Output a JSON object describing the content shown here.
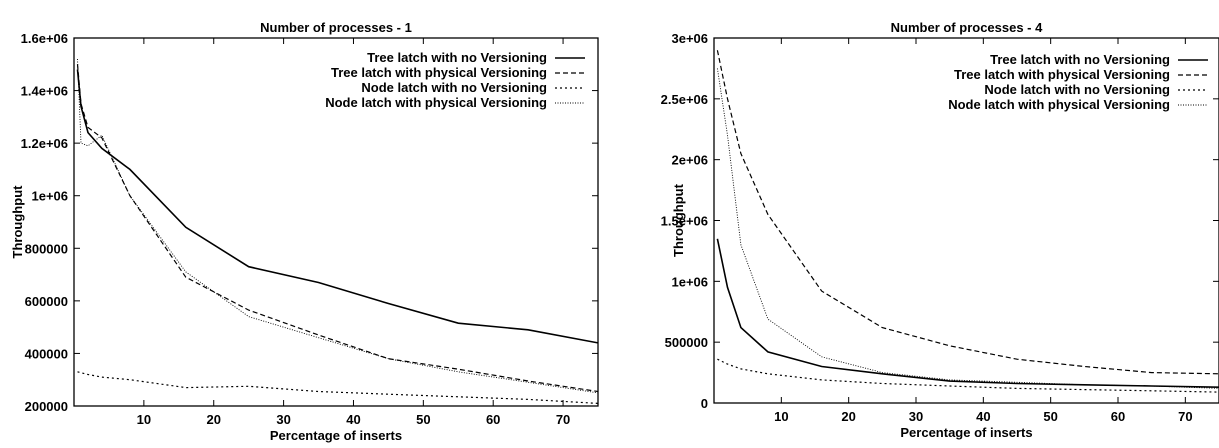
{
  "chart_data": [
    {
      "type": "line",
      "title": "Number of processes - 1",
      "xlabel": "Percentage of inserts",
      "ylabel": "Throughput",
      "xlim": [
        0,
        75
      ],
      "ylim": [
        200000,
        1600000
      ],
      "xticks": [
        10,
        20,
        30,
        40,
        50,
        60,
        70
      ],
      "yticks": [
        200000,
        400000,
        600000,
        800000,
        1000000,
        1200000,
        1400000,
        1600000
      ],
      "ytick_labels": [
        "200000",
        "400000",
        "600000",
        "800000",
        "1e+06",
        "1.2e+06",
        "1.4e+06",
        "1.6e+06"
      ],
      "legend_position": "top-right",
      "grid": false,
      "series": [
        {
          "name": "Tree latch with no Versioning",
          "dash": "solid",
          "x": [
            0.5,
            1,
            2,
            4,
            8,
            16,
            25,
            35,
            45,
            55,
            65,
            75
          ],
          "y": [
            1480000,
            1340000,
            1240000,
            1180000,
            1100000,
            880000,
            730000,
            670000,
            590000,
            515000,
            490000,
            440000
          ]
        },
        {
          "name": "Tree latch with physical Versioning",
          "dash": "dashed",
          "x": [
            0.5,
            1,
            2,
            4,
            8,
            16,
            25,
            35,
            45,
            55,
            65,
            75
          ],
          "y": [
            1500000,
            1350000,
            1260000,
            1220000,
            1000000,
            690000,
            565000,
            470000,
            380000,
            340000,
            295000,
            255000
          ]
        },
        {
          "name": "Node latch with no Versioning",
          "dash": "dotted",
          "x": [
            0.5,
            2,
            4,
            8,
            16,
            25,
            35,
            45,
            55,
            65,
            75
          ],
          "y": [
            330000,
            320000,
            310000,
            300000,
            270000,
            275000,
            255000,
            245000,
            235000,
            225000,
            210000
          ]
        },
        {
          "name": "Node latch with physical Versioning",
          "dash": "fine",
          "x": [
            0.5,
            1,
            2,
            4,
            8,
            16,
            25,
            35,
            45,
            55,
            65,
            75
          ],
          "y": [
            1520000,
            1200000,
            1190000,
            1230000,
            1000000,
            710000,
            540000,
            460000,
            380000,
            330000,
            290000,
            250000
          ]
        }
      ]
    },
    {
      "type": "line",
      "title": "Number of processes - 4",
      "xlabel": "Percentage of inserts",
      "ylabel": "Throughput",
      "xlim": [
        0,
        75
      ],
      "ylim": [
        0,
        3000000
      ],
      "xticks": [
        10,
        20,
        30,
        40,
        50,
        60,
        70
      ],
      "yticks": [
        0,
        500000,
        1000000,
        1500000,
        2000000,
        2500000,
        3000000
      ],
      "ytick_labels": [
        "0",
        "500000",
        "1e+06",
        "1.5e+06",
        "2e+06",
        "2.5e+06",
        "3e+06"
      ],
      "legend_position": "top-right",
      "grid": false,
      "series": [
        {
          "name": "Tree latch with no Versioning",
          "dash": "solid",
          "x": [
            0.5,
            2,
            4,
            8,
            16,
            25,
            35,
            45,
            55,
            65,
            75
          ],
          "y": [
            1350000,
            950000,
            620000,
            420000,
            300000,
            240000,
            180000,
            160000,
            150000,
            140000,
            130000
          ]
        },
        {
          "name": "Tree latch with physical Versioning",
          "dash": "dashed",
          "x": [
            0.5,
            2,
            4,
            8,
            16,
            25,
            35,
            45,
            55,
            65,
            75
          ],
          "y": [
            2900000,
            2500000,
            2050000,
            1550000,
            920000,
            620000,
            470000,
            360000,
            300000,
            250000,
            240000
          ]
        },
        {
          "name": "Node latch with no Versioning",
          "dash": "dotted",
          "x": [
            0.5,
            2,
            4,
            8,
            16,
            25,
            35,
            45,
            55,
            65,
            75
          ],
          "y": [
            360000,
            320000,
            280000,
            240000,
            190000,
            160000,
            140000,
            120000,
            110000,
            100000,
            90000
          ]
        },
        {
          "name": "Node latch with physical Versioning",
          "dash": "fine",
          "x": [
            0.5,
            2,
            4,
            8,
            16,
            25,
            35,
            45,
            55,
            65,
            75
          ],
          "y": [
            2750000,
            2200000,
            1300000,
            690000,
            380000,
            250000,
            190000,
            170000,
            150000,
            140000,
            120000
          ]
        }
      ]
    }
  ]
}
